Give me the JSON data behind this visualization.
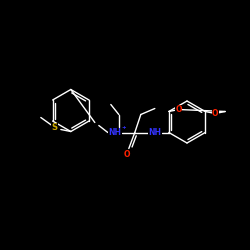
{
  "background_color": "#000000",
  "bond_color": "#ffffff",
  "atom_colors": {
    "N": "#3333ff",
    "O": "#ff2200",
    "S": "#ccaa00"
  },
  "figsize": [
    2.5,
    2.5
  ],
  "dpi": 100,
  "bond_lw": 1.0,
  "font_size": 5.5
}
